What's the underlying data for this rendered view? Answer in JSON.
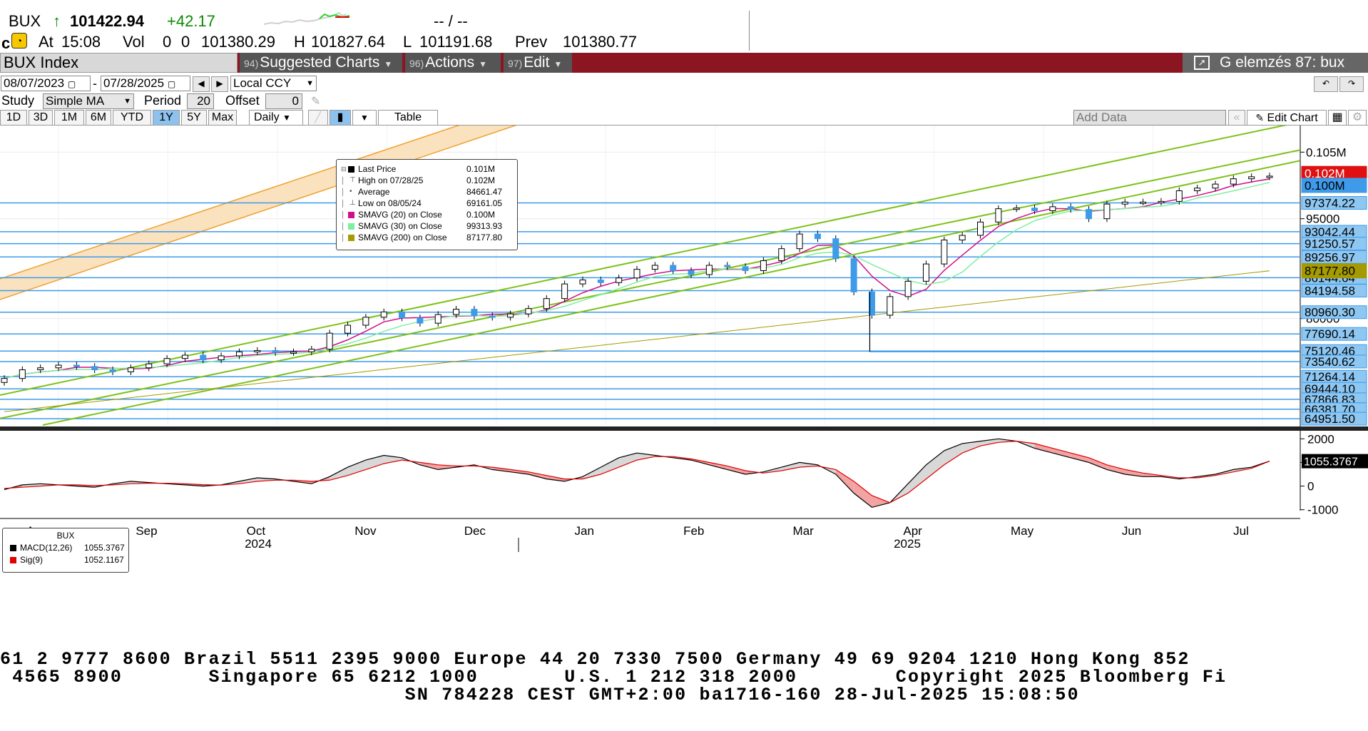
{
  "header": {
    "ticker": "BUX",
    "arrow": "↑",
    "last": "101422.94",
    "change": "+42.17",
    "bid_ask": "-- / --",
    "at_label": "At",
    "time": "15:08",
    "vol_label": "Vol",
    "vol": "0",
    "vol2": "0",
    "open": "101380.29",
    "high_label": "H",
    "high": "101827.64",
    "low_label": "L",
    "low": "101191.68",
    "prev_label": "Prev",
    "prev": "101380.77"
  },
  "menu": {
    "security": "BUX Index",
    "suggested_num": "94)",
    "suggested": "Suggested Charts",
    "actions_num": "96)",
    "actions": "Actions",
    "edit_num": "97)",
    "edit": "Edit",
    "right_label": "G elemzés 87: bux"
  },
  "controls": {
    "start_date": "08/07/2023",
    "end_date": "07/28/2025",
    "dash": "-",
    "currency": "Local CCY",
    "study_label": "Study",
    "study": "Simple MA",
    "period_label": "Period",
    "period": "20",
    "offset_label": "Offset",
    "offset": "0",
    "ranges": [
      "1D",
      "3D",
      "1M",
      "6M",
      "YTD",
      "1Y",
      "5Y",
      "Max"
    ],
    "active_range": "1Y",
    "frequency": "Daily",
    "table_label": "Table",
    "add_data": "Add Data",
    "edit_chart": "Edit Chart"
  },
  "legend": {
    "rows": [
      {
        "label": "Last Price",
        "value": "0.101M",
        "color": "#000000",
        "kind": "box"
      },
      {
        "label": "High on 07/28/25",
        "value": "0.102M",
        "color": "#000000",
        "kind": "high"
      },
      {
        "label": "Average",
        "value": "84661.47",
        "color": "#000000",
        "kind": "avg"
      },
      {
        "label": "Low on 08/05/24",
        "value": "69161.05",
        "color": "#000000",
        "kind": "low"
      },
      {
        "label": "SMAVG (20)  on Close",
        "value": "0.100M",
        "color": "#d0108a",
        "kind": "box"
      },
      {
        "label": "SMAVG (30)  on Close",
        "value": "99313.93",
        "color": "#7fef9f",
        "kind": "box"
      },
      {
        "label": "SMAVG (200)  on Close",
        "value": "87177.80",
        "color": "#a59a00",
        "kind": "box"
      }
    ]
  },
  "macd_legend": {
    "title": "BUX",
    "rows": [
      {
        "label": "MACD(12,26)",
        "value": "1055.3767",
        "color": "#000000"
      },
      {
        "label": "Sig(9)",
        "value": "1052.1167",
        "color": "#e00000"
      }
    ]
  },
  "chart_data": [
    {
      "type": "candlestick",
      "title": "",
      "y_axis_labels": [
        "0.105M",
        "95000",
        "80000"
      ],
      "y_axis_ticks": [
        105000,
        95000,
        80000
      ],
      "ylim": [
        64000,
        109000
      ],
      "x_months": [
        "Aug",
        "Sep",
        "Oct",
        "Nov",
        "Dec",
        "Jan",
        "Feb",
        "Mar",
        "Apr",
        "May",
        "Jun",
        "Jul"
      ],
      "x_years": [
        "2024",
        "2025"
      ],
      "horizontal_levels": [
        97374.22,
        93042.44,
        91250.57,
        89256.97,
        86144.64,
        84194.58,
        80960.3,
        77690.14,
        75120.46,
        73540.62,
        71264.14,
        69444.1,
        67866.83,
        66381.7,
        64951.5
      ],
      "level_labels": [
        "97374.22",
        "93042.44",
        "91250.57",
        "89256.97",
        "86144.64",
        "84194.58",
        "80960.30",
        "77690.14",
        "75120.46",
        "73540.62",
        "71264.14",
        "69444.10",
        "67866.83",
        "66381.70",
        "64951.50"
      ],
      "price_tags": [
        {
          "label": "0.102M",
          "value": 101800,
          "color": "#e01010"
        },
        {
          "label": "0.100M",
          "value": 100000,
          "color": "#3d9bea"
        },
        {
          "label": "87177.80",
          "value": 87177.8,
          "color": "#a59a00"
        }
      ],
      "close_by_week": [
        71000,
        72300,
        72600,
        73000,
        72800,
        72300,
        72000,
        72600,
        73200,
        74000,
        74500,
        73800,
        74400,
        75000,
        75200,
        74900,
        75000,
        75400,
        77800,
        79000,
        80200,
        81000,
        80100,
        79300,
        80600,
        81400,
        80400,
        80200,
        80700,
        81500,
        83000,
        85200,
        85800,
        85400,
        86100,
        87400,
        88000,
        87200,
        86600,
        88000,
        87800,
        87200,
        88700,
        90500,
        92700,
        92000,
        89000,
        84000,
        80500,
        83300,
        85600,
        88200,
        91800,
        92500,
        94500,
        96500,
        96600,
        96200,
        96800,
        96400,
        95000,
        97200,
        97500,
        97500,
        97600,
        99200,
        99600,
        100200,
        101000,
        101300,
        101400
      ],
      "sma_200_start": 66000,
      "sma_200_end": 87177.8
    },
    {
      "type": "line",
      "title": "BUX",
      "y_axis_labels": [
        "2000",
        "1000",
        "0",
        "-1000"
      ],
      "y_axis_ticks": [
        2000,
        1000,
        0,
        -1000
      ],
      "ylim": [
        -1100,
        2100
      ],
      "series": [
        {
          "name": "MACD(12,26)",
          "values": [
            -150,
            50,
            100,
            50,
            0,
            -50,
            100,
            200,
            150,
            100,
            50,
            0,
            50,
            200,
            350,
            300,
            200,
            100,
            400,
            800,
            1100,
            1300,
            1200,
            900,
            700,
            800,
            900,
            700,
            600,
            500,
            300,
            200,
            400,
            800,
            1200,
            1400,
            1300,
            1200,
            1100,
            900,
            700,
            500,
            600,
            800,
            1000,
            900,
            500,
            -300,
            -900,
            -700,
            100,
            900,
            1500,
            1800,
            1900,
            2000,
            1900,
            1600,
            1400,
            1200,
            1000,
            700,
            500,
            400,
            400,
            300,
            400,
            500,
            700,
            800,
            1055.3767
          ]
        },
        {
          "name": "Sig(9)",
          "values": [
            -100,
            -50,
            0,
            50,
            50,
            20,
            50,
            100,
            120,
            120,
            100,
            60,
            40,
            100,
            200,
            250,
            250,
            200,
            250,
            450,
            700,
            950,
            1100,
            1000,
            900,
            850,
            850,
            800,
            700,
            600,
            450,
            300,
            300,
            500,
            800,
            1100,
            1250,
            1250,
            1150,
            1000,
            850,
            650,
            550,
            650,
            800,
            850,
            700,
            200,
            -400,
            -700,
            -300,
            300,
            900,
            1400,
            1700,
            1850,
            1900,
            1800,
            1600,
            1400,
            1200,
            900,
            700,
            550,
            450,
            350,
            350,
            450,
            600,
            750,
            1052.1167
          ]
        }
      ],
      "value_tag": "1055.3767"
    }
  ],
  "footer": {
    "line1": "61 2 9777 8600 Brazil 5511 2395 9000 Europe 44 20 7330 7500 Germany 49 69 9204 1210 Hong Kong 852",
    "line2": " 4565 8900       Singapore 65 6212 1000       U.S. 1 212 318 2000        Copyright 2025 Bloomberg Fi",
    "line3": "                                 SN 784228 CEST GMT+2:00 ba1716-160 28-Jul-2025 15:08:50"
  },
  "colors": {
    "menu_bar": "#8b1521",
    "candle_up": "#3d9bea",
    "trend_line": "#7dc218",
    "channel": "#f0a030",
    "level_line": "#3d9bea"
  }
}
